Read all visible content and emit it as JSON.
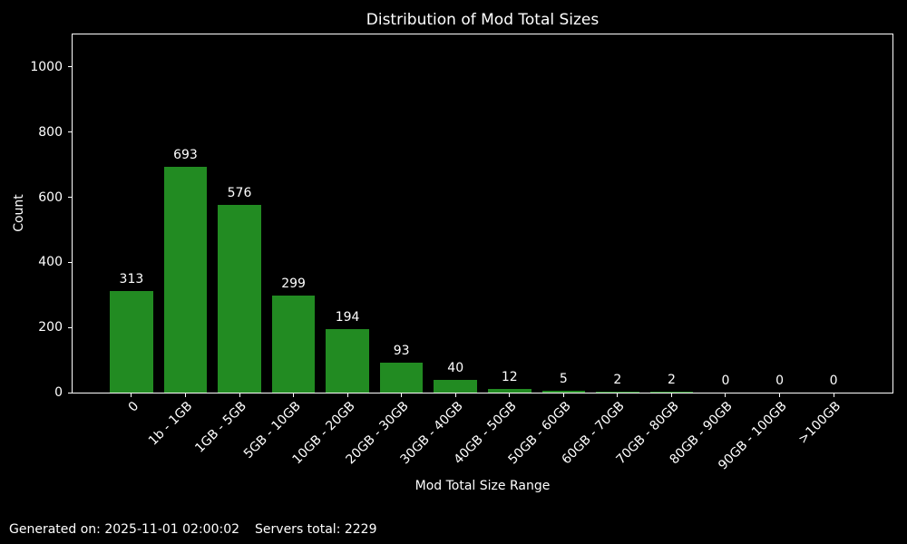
{
  "chart_data": {
    "type": "bar",
    "title": "Distribution of Mod Total Sizes",
    "xlabel": "Mod Total Size Range",
    "ylabel": "Count",
    "categories": [
      "0",
      "1b - 1GB",
      "1GB - 5GB",
      "5GB - 10GB",
      "10GB - 20GB",
      "20GB - 30GB",
      "30GB - 40GB",
      "40GB - 50GB",
      "50GB - 60GB",
      "60GB - 70GB",
      "70GB - 80GB",
      "80GB - 90GB",
      "90GB - 100GB",
      ">100GB"
    ],
    "values": [
      313,
      693,
      576,
      299,
      194,
      93,
      40,
      12,
      5,
      2,
      2,
      0,
      0,
      0
    ],
    "yticks": [
      0,
      200,
      400,
      600,
      800,
      1000
    ],
    "ylim": [
      0,
      1100
    ],
    "bar_color": "#228B22",
    "background": "#000000",
    "text_color": "#ffffff",
    "grid": false,
    "legend": null
  },
  "footer": {
    "generated_on": "Generated on: 2025-11-01 02:00:02",
    "servers_total": "Servers total: 2229"
  }
}
